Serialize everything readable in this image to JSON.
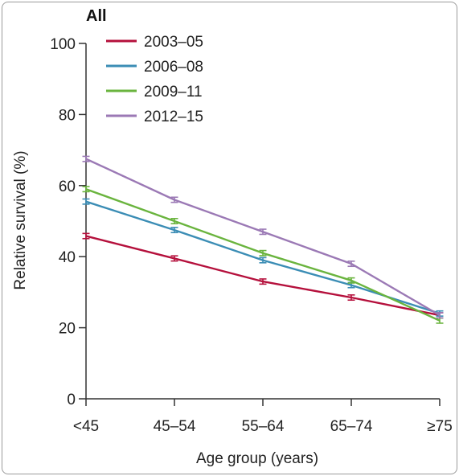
{
  "chart_data": {
    "type": "line",
    "title": "All",
    "xlabel": "Age group (years)",
    "ylabel": "Relative survival (%)",
    "categories": [
      "<45",
      "45–54",
      "55–64",
      "65–74",
      "≥75"
    ],
    "ylim": [
      0,
      100
    ],
    "yticks": [
      0,
      20,
      40,
      60,
      80,
      100
    ],
    "grid": false,
    "legend_position": "top-left",
    "series": [
      {
        "name": "2003–05",
        "color": "#b5103c",
        "values": [
          45.8,
          39.5,
          33.0,
          28.5,
          23.5
        ]
      },
      {
        "name": "2006–08",
        "color": "#3b8db5",
        "values": [
          55.5,
          47.5,
          39.0,
          32.0,
          24.0
        ]
      },
      {
        "name": "2009–11",
        "color": "#6ab43e",
        "values": [
          59.0,
          50.0,
          41.0,
          33.3,
          22.0
        ]
      },
      {
        "name": "2012–15",
        "color": "#9b79b5",
        "values": [
          67.5,
          56.0,
          47.0,
          38.0,
          23.5
        ]
      }
    ],
    "error_bars": true
  }
}
